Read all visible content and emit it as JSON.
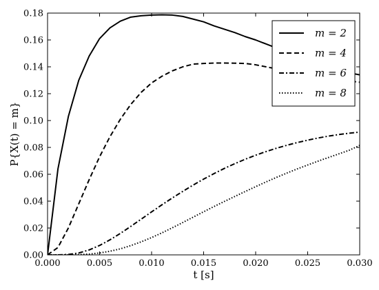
{
  "chart_data": {
    "type": "line",
    "xlabel": "t [s]",
    "ylabel": "P{X(t) = m}",
    "xlim": [
      0,
      0.03
    ],
    "ylim": [
      0,
      0.18
    ],
    "xticks": [
      "0.000",
      "0.005",
      "0.010",
      "0.015",
      "0.020",
      "0.025",
      "0.030"
    ],
    "yticks": [
      "0.00",
      "0.02",
      "0.04",
      "0.06",
      "0.08",
      "0.10",
      "0.12",
      "0.14",
      "0.16",
      "0.18"
    ],
    "grid": false,
    "legend_position": "top-right",
    "x": [
      0,
      0.001,
      0.002,
      0.003,
      0.004,
      0.005,
      0.006,
      0.007,
      0.008,
      0.009,
      0.01,
      0.011,
      0.012,
      0.013,
      0.014,
      0.015,
      0.016,
      0.017,
      0.018,
      0.019,
      0.02,
      0.021,
      0.022,
      0.023,
      0.024,
      0.025,
      0.026,
      0.027,
      0.028,
      0.029,
      0.03
    ],
    "series": [
      {
        "name": "m = 2",
        "dash": "solid",
        "values": [
          0,
          0.064,
          0.103,
          0.13,
          0.148,
          0.161,
          0.169,
          0.174,
          0.177,
          0.178,
          0.1785,
          0.1787,
          0.1785,
          0.1775,
          0.1755,
          0.1735,
          0.1705,
          0.168,
          0.1655,
          0.1625,
          0.16,
          0.157,
          0.154,
          0.151,
          0.148,
          0.1455,
          0.1425,
          0.1395,
          0.1375,
          0.1355,
          0.134
        ]
      },
      {
        "name": "m = 4",
        "dash": "dashed",
        "values": [
          0,
          0.0055,
          0.02,
          0.038,
          0.056,
          0.073,
          0.088,
          0.101,
          0.112,
          0.121,
          0.128,
          0.133,
          0.137,
          0.14,
          0.142,
          0.1425,
          0.1428,
          0.1428,
          0.1427,
          0.1425,
          0.1415,
          0.14,
          0.1385,
          0.1375,
          0.136,
          0.1345,
          0.133,
          0.1315,
          0.1305,
          0.1295,
          0.1285
        ]
      },
      {
        "name": "m = 6",
        "dash": "dashdot",
        "values": [
          0,
          0,
          0.0003,
          0.0014,
          0.0037,
          0.007,
          0.0112,
          0.016,
          0.0212,
          0.0266,
          0.032,
          0.0373,
          0.0424,
          0.0473,
          0.052,
          0.0564,
          0.0605,
          0.0644,
          0.0679,
          0.0712,
          0.0742,
          0.0769,
          0.0794,
          0.0816,
          0.0836,
          0.0854,
          0.087,
          0.0884,
          0.0896,
          0.0906,
          0.0914
        ]
      },
      {
        "name": "m = 8",
        "dash": "dotted",
        "values": [
          0,
          0,
          0,
          0.0002,
          0.0006,
          0.0014,
          0.0027,
          0.0045,
          0.0069,
          0.0097,
          0.0129,
          0.0164,
          0.0202,
          0.0241,
          0.0281,
          0.0321,
          0.036,
          0.0398,
          0.0435,
          0.0472,
          0.0508,
          0.0543,
          0.0577,
          0.0609,
          0.064,
          0.0669,
          0.0698,
          0.0725,
          0.0752,
          0.0779,
          0.0815
        ]
      }
    ]
  }
}
